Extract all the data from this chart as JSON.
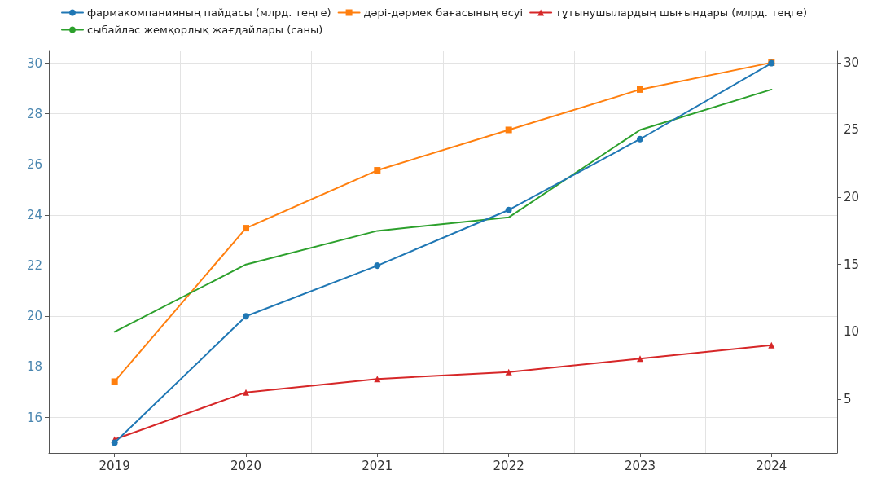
{
  "chart_data": {
    "type": "line",
    "categories": [
      "2019",
      "2020",
      "2021",
      "2022",
      "2023",
      "2024"
    ],
    "series": [
      {
        "name": "фармакомпанияның пайдасы (млрд. теңге)",
        "color": "#1f77b4",
        "marker": "circle",
        "values": [
          15,
          20,
          22,
          24.2,
          27,
          30
        ]
      },
      {
        "name": "дәрі-дәрмек бағасының өсуі",
        "color": "#ff7f0e",
        "marker": "square",
        "axis": "y2",
        "values": [
          6.3,
          17.7,
          22,
          25,
          28,
          30
        ]
      },
      {
        "name": "тұтынушылардың шығындары (млрд. теңге)",
        "color": "#d62728",
        "marker": "triangle",
        "axis": "y2",
        "values": [
          2,
          5.5,
          6.5,
          7,
          8,
          9
        ]
      },
      {
        "name": "сыбайлас жемқорлық жағдайлары (саны)",
        "color": "#2ca02c",
        "marker": "none",
        "axis": "y2",
        "values": [
          10,
          15,
          17.5,
          18.5,
          25,
          28
        ]
      }
    ],
    "ylim": [
      14.6,
      30.5
    ],
    "yticks": [
      16,
      18,
      20,
      22,
      24,
      26,
      28,
      30
    ],
    "y2lim": [
      1,
      30.9
    ],
    "y2ticks": [
      5,
      10,
      15,
      20,
      25,
      30
    ],
    "grid": true,
    "legend": "top left",
    "line_style": "solid"
  }
}
